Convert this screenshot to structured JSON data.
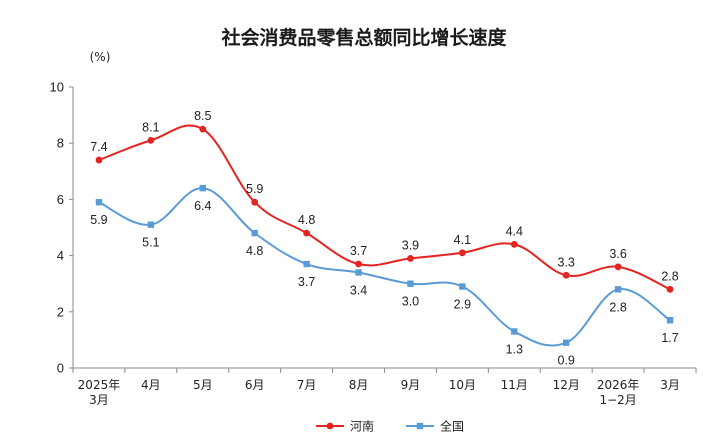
{
  "chart_data": {
    "type": "line",
    "title": "社会消费品零售总额同比增长速度",
    "ylabel": "(%)",
    "ylim": [
      0,
      10
    ],
    "yticks": [
      "0",
      "2",
      "4",
      "6",
      "8",
      "10"
    ],
    "categories": [
      [
        "2025年",
        "3月"
      ],
      [
        "4月"
      ],
      [
        "5月"
      ],
      [
        "6月"
      ],
      [
        "7月"
      ],
      [
        "8月"
      ],
      [
        "9月"
      ],
      [
        "10月"
      ],
      [
        "11月"
      ],
      [
        "12月"
      ],
      [
        "2026年",
        "1−2月"
      ],
      [
        "3月"
      ]
    ],
    "series": [
      {
        "name": "河南",
        "color": "#e32420",
        "marker": "circle",
        "values": [
          7.4,
          8.1,
          8.5,
          5.9,
          4.8,
          3.7,
          3.9,
          4.1,
          4.4,
          3.3,
          3.6,
          2.8
        ],
        "labels": [
          "7.4",
          "8.1",
          "8.5",
          "5.9",
          "4.8",
          "3.7",
          "3.9",
          "4.1",
          "4.4",
          "3.3",
          "3.6",
          "2.8"
        ],
        "label_position": "above"
      },
      {
        "name": "全国",
        "color": "#5b9bd5",
        "marker": "square",
        "values": [
          5.9,
          5.1,
          6.4,
          4.8,
          3.7,
          3.4,
          3.0,
          2.9,
          1.3,
          0.9,
          2.8,
          1.7
        ],
        "labels": [
          "5.9",
          "5.1",
          "6.4",
          "4.8",
          "3.7",
          "3.4",
          "3.0",
          "2.9",
          "1.3",
          "0.9",
          "2.8",
          "1.7"
        ],
        "label_position": "below"
      }
    ],
    "legend_position": "bottom-center",
    "grid": false
  }
}
